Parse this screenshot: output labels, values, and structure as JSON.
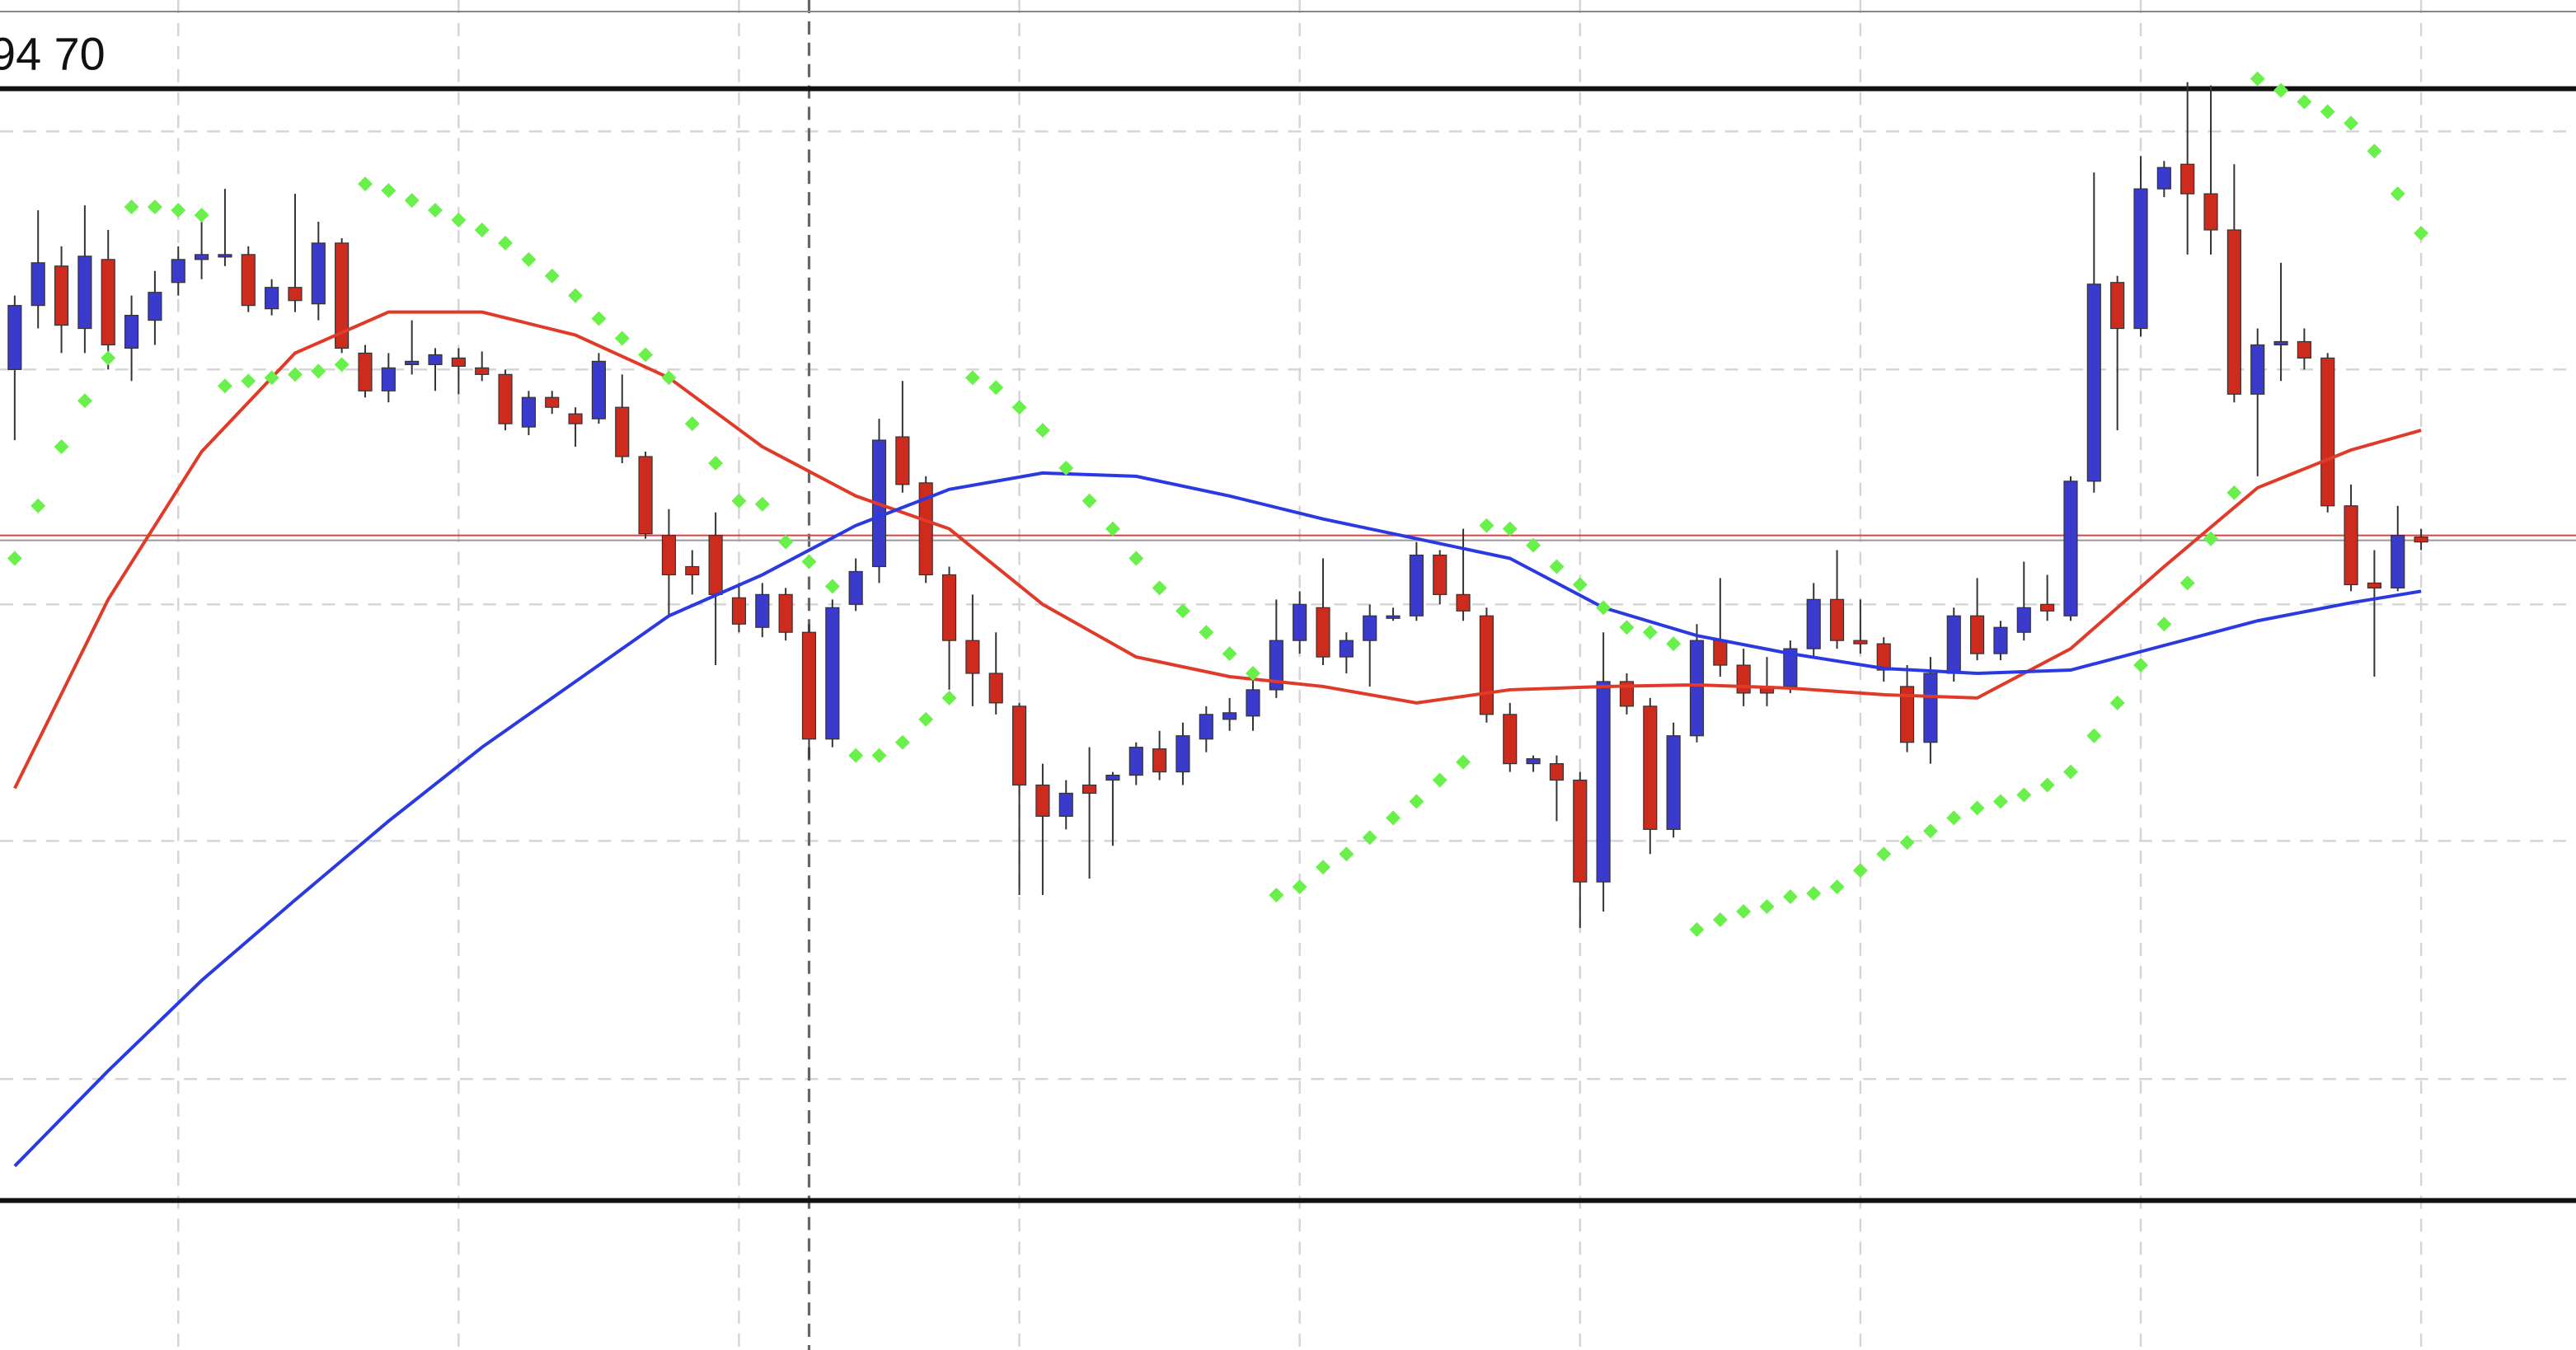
{
  "chart_data": {
    "type": "candlestick",
    "label": "94 70",
    "xlim": [
      -0.63,
      109.63
    ],
    "ylim": [
      -22,
      800
    ],
    "vgrid": [
      7,
      19,
      31,
      43,
      55,
      67,
      79,
      91,
      103
    ],
    "hgrid": [
      720,
      575,
      432,
      288,
      143
    ],
    "cursor_x": 34,
    "up_color": "#3a3acc",
    "down_color": "#cc2b1d",
    "levels": [
      {
        "value": 793,
        "color": "#888888",
        "width": 1
      },
      {
        "value": 746,
        "color": "#111111",
        "width": 3
      },
      {
        "value": 69,
        "color": "#111111",
        "width": 3
      },
      {
        "value": 474,
        "color": "#e04040",
        "width": 1
      },
      {
        "value": 471,
        "color": "#999999",
        "width": 1
      }
    ],
    "open": [
      575,
      614,
      638,
      600,
      642,
      588,
      605,
      628,
      642,
      644,
      645,
      612,
      625,
      615,
      652,
      585,
      562,
      578,
      578,
      582,
      576,
      572,
      540,
      558,
      548,
      545,
      552,
      522,
      474,
      455,
      474,
      436,
      418,
      438,
      415,
      350,
      432,
      455,
      534,
      506,
      450,
      410,
      390,
      370,
      322,
      303,
      322,
      325,
      328,
      344,
      330,
      350,
      362,
      364,
      380,
      410,
      430,
      400,
      410,
      424,
      425,
      462,
      438,
      425,
      365,
      335,
      335,
      325,
      263,
      385,
      370,
      295,
      352,
      410,
      395,
      382,
      382,
      405,
      435,
      410,
      408,
      382,
      348,
      390,
      425,
      402,
      415,
      432,
      425,
      507,
      628,
      600,
      685,
      700,
      682,
      660,
      560,
      590,
      592,
      582,
      492,
      445,
      442,
      473
    ],
    "high": [
      620,
      672,
      650,
      675,
      660,
      620,
      635,
      650,
      670,
      685,
      650,
      630,
      682,
      665,
      655,
      590,
      585,
      605,
      588,
      588,
      586,
      575,
      562,
      562,
      552,
      585,
      572,
      525,
      490,
      465,
      488,
      445,
      445,
      442,
      420,
      435,
      460,
      545,
      568,
      510,
      455,
      438,
      415,
      372,
      335,
      325,
      345,
      330,
      348,
      355,
      360,
      370,
      375,
      390,
      435,
      440,
      460,
      415,
      432,
      430,
      470,
      465,
      478,
      430,
      372,
      340,
      340,
      330,
      415,
      390,
      375,
      360,
      420,
      448,
      405,
      400,
      410,
      445,
      465,
      435,
      412,
      395,
      400,
      430,
      448,
      422,
      458,
      450,
      510,
      695,
      632,
      705,
      702,
      750,
      748,
      700,
      600,
      640,
      600,
      585,
      505,
      465,
      492,
      478
    ],
    "low": [
      532,
      600,
      585,
      585,
      575,
      568,
      590,
      620,
      630,
      638,
      610,
      608,
      610,
      605,
      585,
      558,
      555,
      572,
      562,
      560,
      568,
      538,
      535,
      548,
      528,
      542,
      518,
      472,
      425,
      438,
      395,
      415,
      412,
      410,
      338,
      345,
      428,
      445,
      500,
      445,
      380,
      370,
      365,
      255,
      255,
      295,
      265,
      285,
      322,
      325,
      322,
      342,
      355,
      355,
      375,
      402,
      395,
      390,
      382,
      422,
      422,
      432,
      422,
      360,
      330,
      330,
      300,
      235,
      245,
      365,
      280,
      290,
      348,
      388,
      370,
      370,
      378,
      400,
      405,
      402,
      385,
      342,
      335,
      385,
      398,
      398,
      410,
      422,
      422,
      500,
      538,
      595,
      680,
      645,
      645,
      555,
      510,
      568,
      575,
      488,
      440,
      388,
      440,
      465
    ],
    "close": [
      614,
      640,
      602,
      644,
      590,
      608,
      622,
      642,
      645,
      645,
      614,
      625,
      617,
      652,
      588,
      562,
      576,
      580,
      584,
      577,
      572,
      542,
      558,
      552,
      542,
      580,
      522,
      475,
      450,
      450,
      438,
      420,
      438,
      415,
      350,
      430,
      452,
      532,
      505,
      450,
      410,
      390,
      372,
      322,
      303,
      317,
      317,
      328,
      345,
      330,
      352,
      365,
      366,
      380,
      410,
      432,
      400,
      410,
      425,
      425,
      462,
      438,
      428,
      365,
      335,
      338,
      325,
      263,
      385,
      370,
      295,
      352,
      410,
      395,
      378,
      378,
      405,
      435,
      410,
      408,
      392,
      348,
      390,
      425,
      402,
      418,
      430,
      428,
      507,
      627,
      600,
      685,
      698,
      682,
      660,
      560,
      590,
      592,
      582,
      492,
      444,
      442,
      474,
      470
    ],
    "overlays": [
      {
        "type": "line",
        "color": "#e03a28",
        "x": [
          0,
          4,
          8,
          12,
          16,
          20,
          24,
          28,
          32,
          36,
          40,
          44,
          48,
          52,
          56,
          60,
          64,
          68,
          72,
          76,
          80,
          84,
          88,
          92,
          96,
          100,
          103
        ],
        "values": [
          320,
          435,
          525,
          585,
          610,
          610,
          596,
          570,
          528,
          498,
          478,
          432,
          400,
          388,
          382,
          372,
          380,
          382,
          383,
          381,
          377,
          375,
          405,
          455,
          503,
          526,
          538
        ]
      },
      {
        "type": "line",
        "color": "#2a3ae0",
        "x": [
          0,
          4,
          8,
          12,
          16,
          20,
          24,
          28,
          32,
          36,
          40,
          44,
          48,
          52,
          56,
          60,
          64,
          68,
          72,
          76,
          80,
          84,
          88,
          92,
          96,
          100,
          103
        ],
        "values": [
          90,
          148,
          203,
          252,
          300,
          345,
          385,
          425,
          450,
          480,
          502,
          512,
          510,
          498,
          484,
          472,
          460,
          430,
          413,
          402,
          393,
          390,
          392,
          407,
          422,
          433,
          440
        ]
      },
      {
        "type": "sar",
        "color": "#6af04a",
        "values": [
          460,
          492,
          528,
          556,
          582,
          674,
          674,
          672,
          669,
          565,
          568,
          570,
          572,
          574,
          578,
          688,
          684,
          678,
          672,
          666,
          660,
          652,
          642,
          632,
          620,
          606,
          594,
          584,
          570,
          542,
          518,
          495,
          493,
          470,
          458,
          443,
          340,
          340,
          348,
          362,
          375,
          570,
          564,
          552,
          538,
          515,
          495,
          478,
          460,
          442,
          428,
          415,
          402,
          390,
          255,
          260,
          272,
          280,
          290,
          302,
          312,
          325,
          336,
          480,
          478,
          468,
          455,
          444,
          430,
          418,
          415,
          408,
          234,
          240,
          245,
          248,
          254,
          256,
          260,
          270,
          280,
          287,
          294,
          302,
          308,
          312,
          316,
          322,
          330,
          352,
          372,
          395,
          420,
          445,
          472,
          500,
          752,
          745,
          738,
          732,
          725,
          708,
          682,
          658
        ]
      }
    ]
  }
}
